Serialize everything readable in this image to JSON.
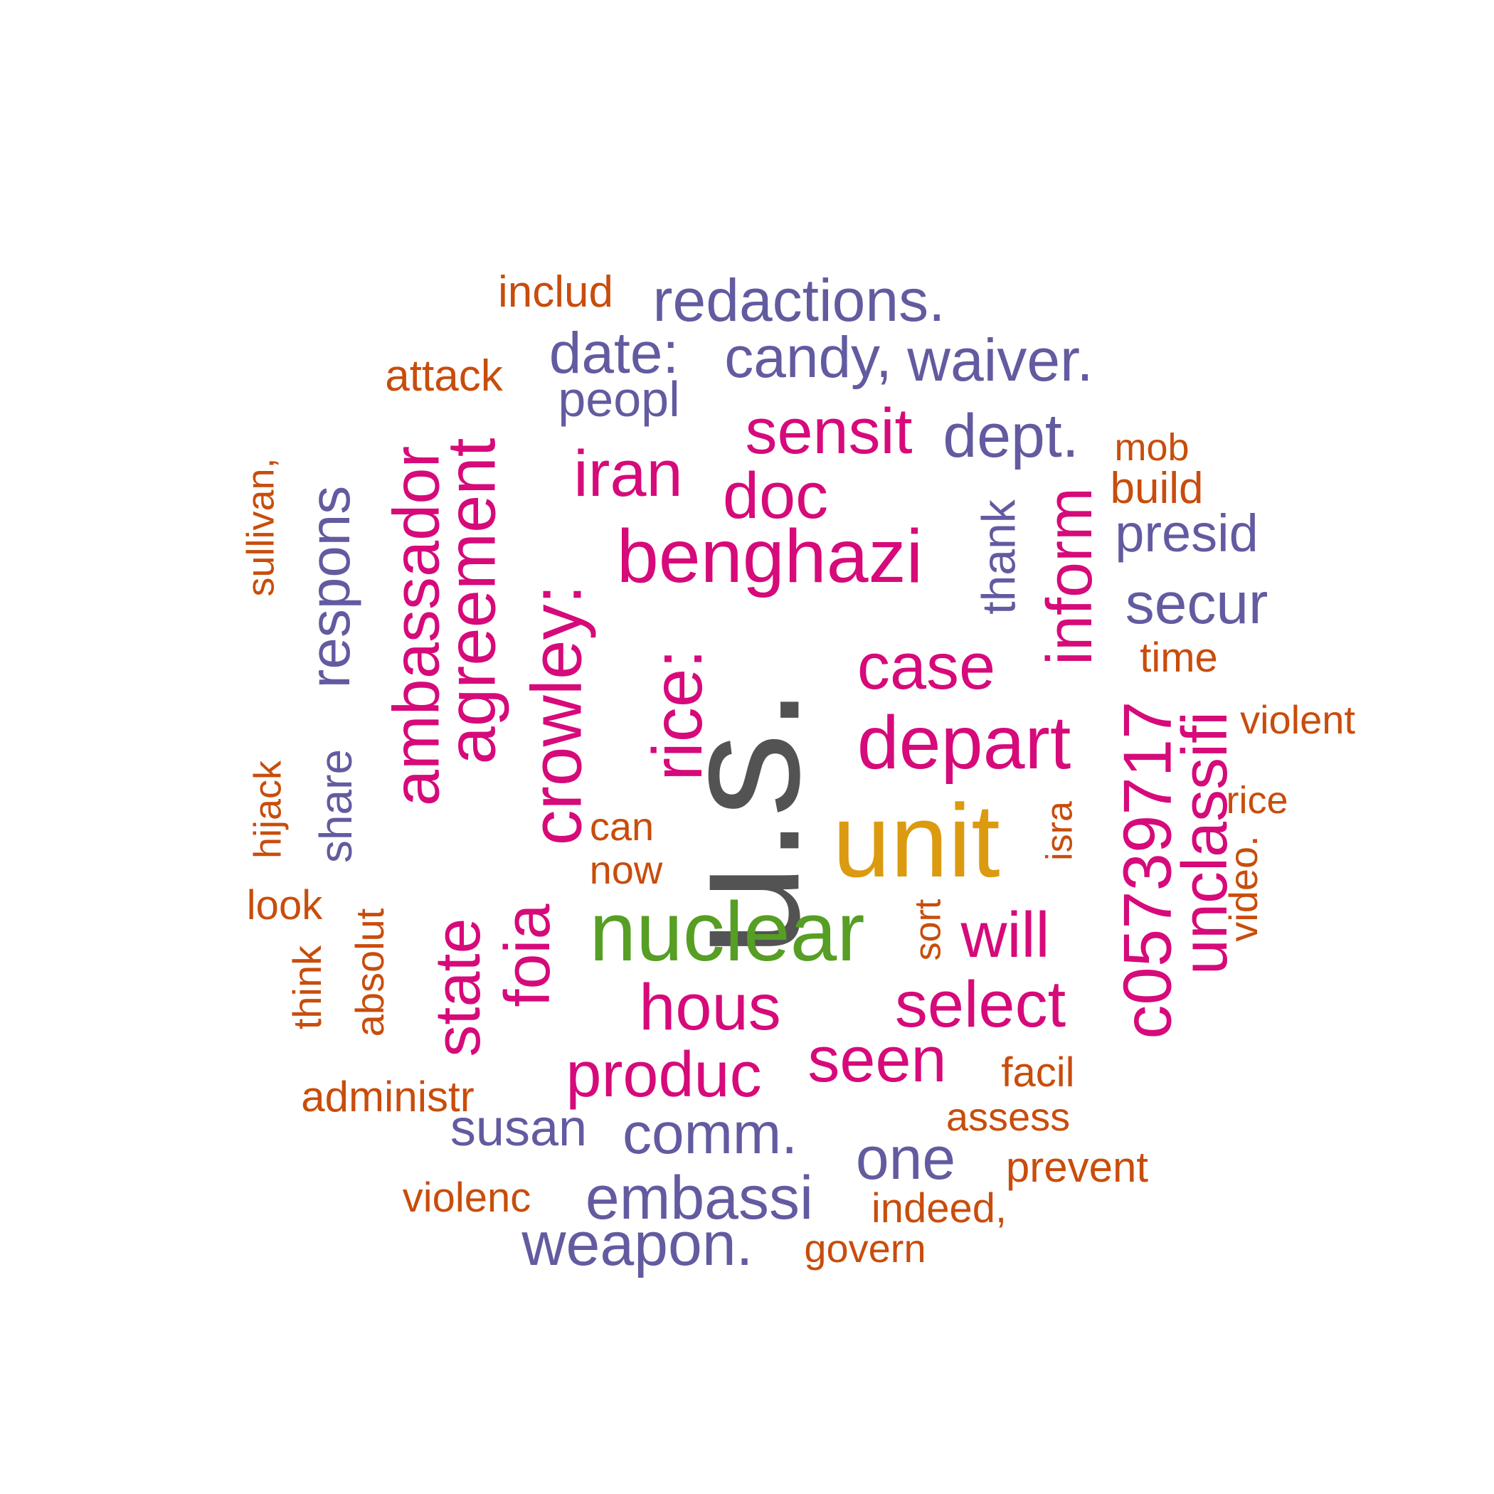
{
  "colors": {
    "gray": "#535353",
    "gold": "#DB9A0F",
    "green": "#569E24",
    "magenta": "#D60A7A",
    "purple": "#625BA0",
    "orange": "#C84D0C"
  },
  "words": [
    {
      "text": "u.s.",
      "color": "gray"
    },
    {
      "text": "unit",
      "color": "gold"
    },
    {
      "text": "nuclear",
      "color": "green"
    },
    {
      "text": "benghazi",
      "color": "magenta"
    },
    {
      "text": "depart",
      "color": "magenta"
    },
    {
      "text": "crowley:",
      "color": "magenta"
    },
    {
      "text": "rice:",
      "color": "magenta"
    },
    {
      "text": "c05739717",
      "color": "magenta"
    },
    {
      "text": "agreement",
      "color": "magenta"
    },
    {
      "text": "ambassador",
      "color": "magenta"
    },
    {
      "text": "unclassifi",
      "color": "magenta"
    },
    {
      "text": "inform",
      "color": "magenta"
    },
    {
      "text": "case",
      "color": "magenta"
    },
    {
      "text": "select",
      "color": "magenta"
    },
    {
      "text": "hous",
      "color": "magenta"
    },
    {
      "text": "produc",
      "color": "magenta"
    },
    {
      "text": "seen",
      "color": "magenta"
    },
    {
      "text": "will",
      "color": "magenta"
    },
    {
      "text": "state",
      "color": "magenta"
    },
    {
      "text": "foia",
      "color": "magenta"
    },
    {
      "text": "iran",
      "color": "magenta"
    },
    {
      "text": "doc",
      "color": "magenta"
    },
    {
      "text": "sensit",
      "color": "magenta"
    },
    {
      "text": "redactions.",
      "color": "purple"
    },
    {
      "text": "date:",
      "color": "purple"
    },
    {
      "text": "candy,",
      "color": "purple"
    },
    {
      "text": "waiver.",
      "color": "purple"
    },
    {
      "text": "peopl",
      "color": "purple"
    },
    {
      "text": "dept.",
      "color": "purple"
    },
    {
      "text": "presid",
      "color": "purple"
    },
    {
      "text": "secur",
      "color": "purple"
    },
    {
      "text": "respons",
      "color": "purple"
    },
    {
      "text": "share",
      "color": "purple"
    },
    {
      "text": "thank",
      "color": "purple"
    },
    {
      "text": "susan",
      "color": "purple"
    },
    {
      "text": "comm.",
      "color": "purple"
    },
    {
      "text": "one",
      "color": "purple"
    },
    {
      "text": "embassi",
      "color": "purple"
    },
    {
      "text": "weapon.",
      "color": "purple"
    },
    {
      "text": "includ",
      "color": "orange"
    },
    {
      "text": "attack",
      "color": "orange"
    },
    {
      "text": "sullivan,",
      "color": "orange"
    },
    {
      "text": "mob",
      "color": "orange"
    },
    {
      "text": "build",
      "color": "orange"
    },
    {
      "text": "time",
      "color": "orange"
    },
    {
      "text": "violent",
      "color": "orange"
    },
    {
      "text": "rice",
      "color": "orange"
    },
    {
      "text": "video.",
      "color": "orange"
    },
    {
      "text": "hijack",
      "color": "orange"
    },
    {
      "text": "look",
      "color": "orange"
    },
    {
      "text": "think",
      "color": "orange"
    },
    {
      "text": "absolut",
      "color": "orange"
    },
    {
      "text": "can",
      "color": "orange"
    },
    {
      "text": "now",
      "color": "orange"
    },
    {
      "text": "isra",
      "color": "orange"
    },
    {
      "text": "sort",
      "color": "orange"
    },
    {
      "text": "administr",
      "color": "orange"
    },
    {
      "text": "facil",
      "color": "orange"
    },
    {
      "text": "assess",
      "color": "orange"
    },
    {
      "text": "prevent",
      "color": "orange"
    },
    {
      "text": "indeed,",
      "color": "orange"
    },
    {
      "text": "violenc",
      "color": "orange"
    },
    {
      "text": "govern",
      "color": "orange"
    }
  ]
}
